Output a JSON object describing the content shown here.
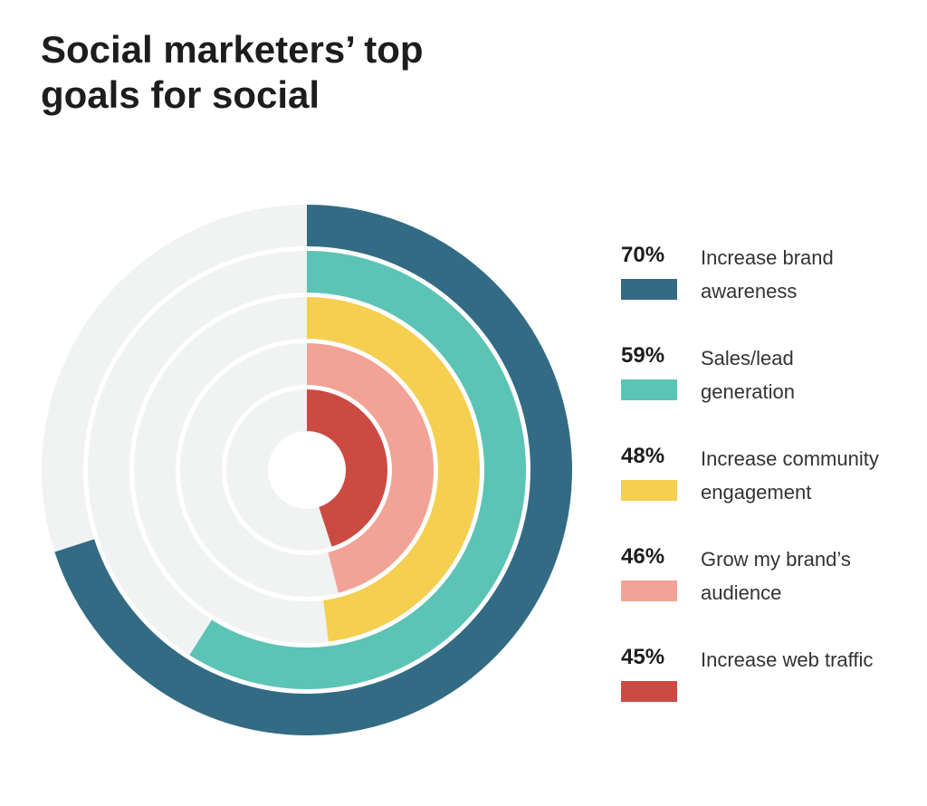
{
  "chart_data": {
    "type": "radial-bar",
    "title": "Social marketers’ top goals for social",
    "series": [
      {
        "name": "Increase brand awareness",
        "color": "#336b84",
        "values": [
          70
        ],
        "value_labels": [
          "70%"
        ]
      },
      {
        "name": "Sales/lead generation",
        "color": "#5bc4b5",
        "values": [
          59
        ],
        "value_labels": [
          "59%"
        ]
      },
      {
        "name": "Increase community engagement",
        "color": "#f5cf4f",
        "values": [
          48
        ],
        "value_labels": [
          "48%"
        ]
      },
      {
        "name": "Grow my brand’s audience",
        "color": "#f2a396",
        "values": [
          46
        ],
        "value_labels": [
          "46%"
        ]
      },
      {
        "name": "Increase web traffic",
        "color": "#cb4b43",
        "values": [
          45
        ],
        "value_labels": [
          "45%"
        ]
      }
    ],
    "ylim": [
      0,
      100
    ]
  }
}
